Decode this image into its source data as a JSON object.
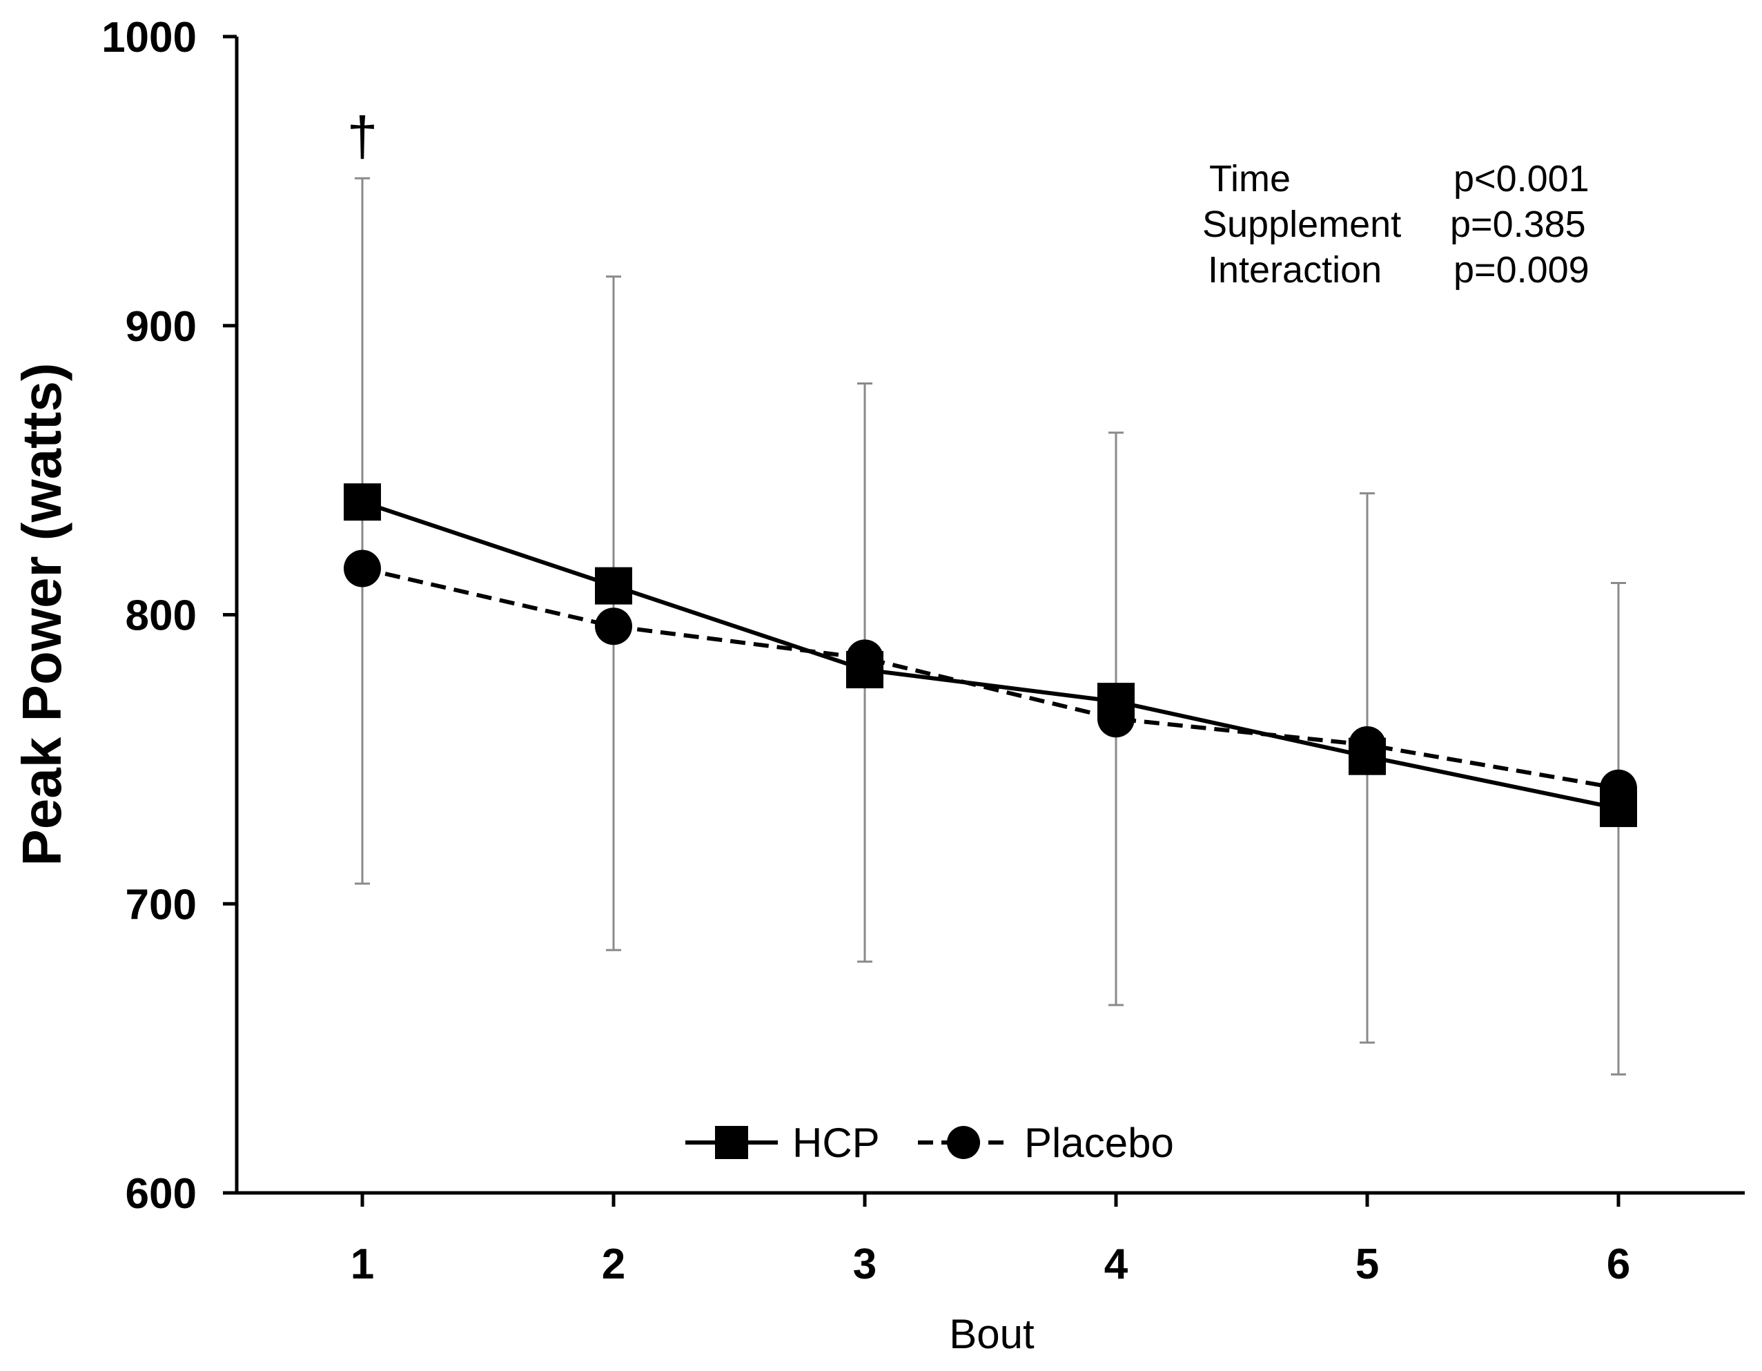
{
  "chart_data": {
    "type": "line",
    "title": "",
    "xlabel": "Bout",
    "ylabel": "Peak Power (watts)",
    "categories": [
      "1",
      "2",
      "3",
      "4",
      "5",
      "6"
    ],
    "ylim": [
      600,
      1000
    ],
    "yticks": [
      "600",
      "700",
      "800",
      "900",
      "1000"
    ],
    "grid": false,
    "legend_position": "bottom-center",
    "series": [
      {
        "name": "HCP",
        "marker": "square",
        "line_style": "solid",
        "values": [
          839,
          810,
          781,
          770,
          751,
          733
        ]
      },
      {
        "name": "Placebo",
        "marker": "circle",
        "line_style": "dashed",
        "values": [
          816,
          796,
          785,
          764,
          755,
          740
        ]
      }
    ],
    "error_bars": {
      "upper": [
        951,
        917,
        880,
        863,
        842,
        811
      ],
      "lower": [
        707,
        684,
        680,
        665,
        652,
        641
      ]
    },
    "annotations": [
      {
        "category": "1",
        "text": "†"
      }
    ],
    "stats": [
      {
        "label": "Time",
        "value": "p<0.001"
      },
      {
        "label": "Supplement",
        "value": "p=0.385"
      },
      {
        "label": "Interaction",
        "value": "p=0.009"
      }
    ]
  }
}
